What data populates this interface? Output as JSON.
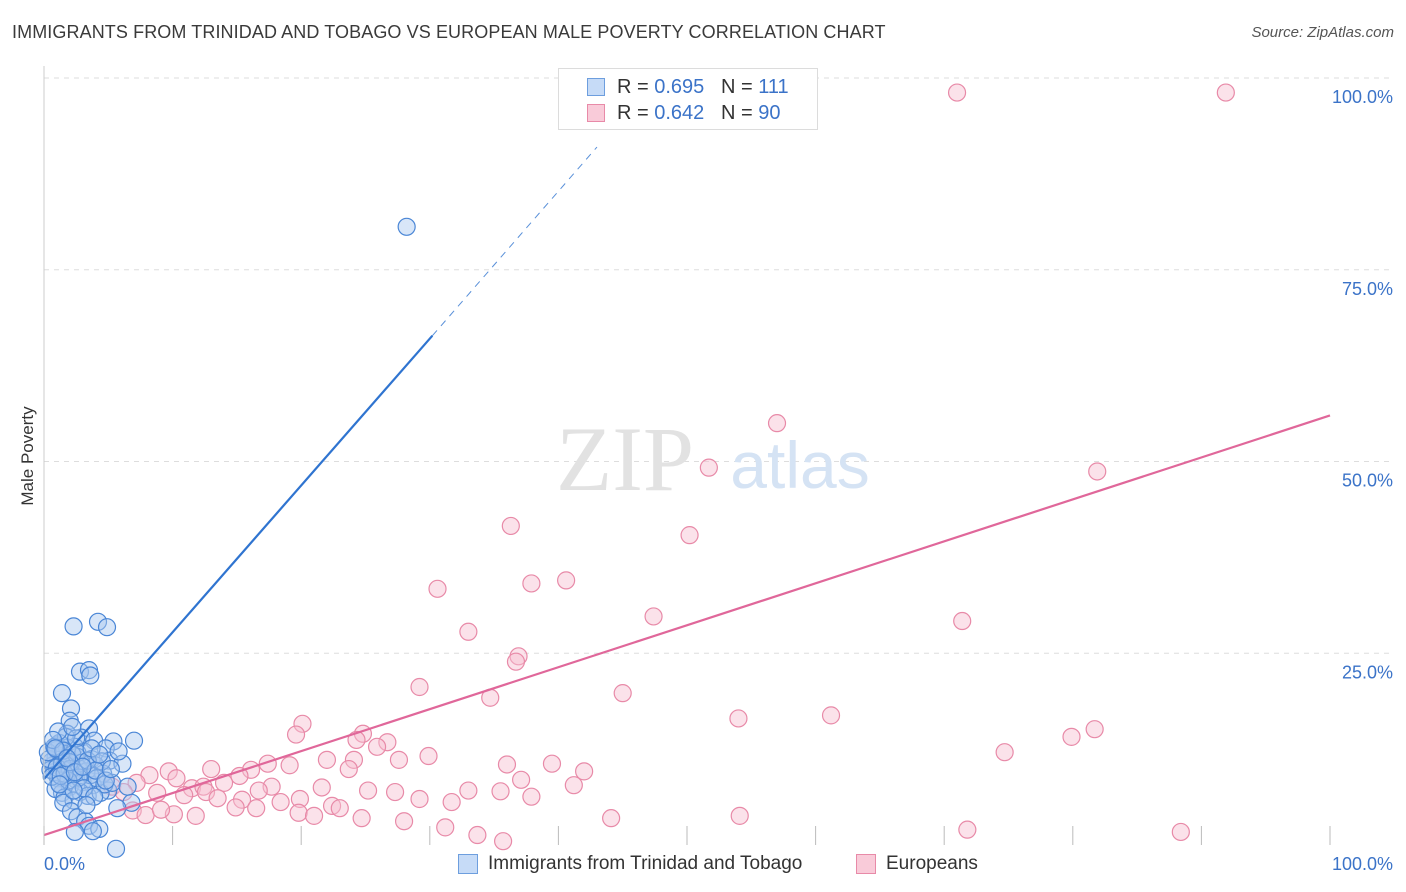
{
  "header": {
    "title": "IMMIGRANTS FROM TRINIDAD AND TOBAGO VS EUROPEAN MALE POVERTY CORRELATION CHART",
    "source": "Source: ZipAtlas.com"
  },
  "watermark": {
    "zip": "ZIP",
    "atlas": "atlas"
  },
  "legend": {
    "series1": {
      "r_label": "R =",
      "r_value": "0.695",
      "n_label": "N =",
      "n_value": "111"
    },
    "series2": {
      "r_label": "R =",
      "r_value": "0.642",
      "n_label": "N =",
      "n_value": "90"
    }
  },
  "bottom_legend": {
    "series1_label": "Immigrants from Trinidad and Tobago",
    "series2_label": "Europeans"
  },
  "colors": {
    "blue_fill": "#a9c8f0",
    "blue_stroke": "#4a86d6",
    "blue_line": "#2f74d0",
    "pink_fill": "#f7bfd0",
    "pink_stroke": "#e88aa8",
    "pink_line": "#e0679a",
    "grid": "#dddddd",
    "tick_text": "#3b73c8"
  },
  "chart_data": {
    "type": "scatter",
    "title": "IMMIGRANTS FROM TRINIDAD AND TOBAGO VS EUROPEAN MALE POVERTY CORRELATION CHART",
    "xlabel": "",
    "ylabel": "Male Poverty",
    "xlim": [
      0,
      100
    ],
    "ylim": [
      0,
      100
    ],
    "x_tick_labels": [
      "0.0%",
      "100.0%"
    ],
    "y_tick_labels": [
      "100.0%",
      "75.0%",
      "50.0%",
      "25.0%"
    ],
    "y_tick_values": [
      100,
      75,
      50,
      25
    ],
    "x_tick_marks": [
      0,
      10,
      20,
      30,
      40,
      50,
      60,
      70,
      80,
      90,
      100
    ],
    "series": [
      {
        "name": "Immigrants from Trinidad and Tobago",
        "r": 0.695,
        "n": 111,
        "trend": {
          "x0": 0,
          "y0": 8.6,
          "x1": 30.2,
          "y1": 66.4,
          "dash_to_x": 43.0,
          "dash_to_y": 91.0
        },
        "points": [
          [
            28.2,
            80.6
          ],
          [
            2.3,
            28.5
          ],
          [
            4.2,
            29.1
          ],
          [
            4.9,
            28.4
          ],
          [
            2.8,
            22.6
          ],
          [
            3.5,
            22.8
          ],
          [
            3.6,
            22.1
          ],
          [
            1.4,
            19.8
          ],
          [
            2.1,
            17.8
          ],
          [
            2.0,
            16.2
          ],
          [
            3.5,
            15.2
          ],
          [
            1.8,
            14.5
          ],
          [
            2.9,
            14.0
          ],
          [
            3.9,
            13.6
          ],
          [
            5.4,
            13.5
          ],
          [
            7.0,
            13.6
          ],
          [
            1.0,
            13.0
          ],
          [
            2.4,
            12.8
          ],
          [
            4.8,
            12.6
          ],
          [
            1.3,
            12.0
          ],
          [
            3.1,
            12.2
          ],
          [
            0.9,
            11.4
          ],
          [
            1.6,
            11.0
          ],
          [
            2.6,
            11.5
          ],
          [
            3.7,
            11.2
          ],
          [
            5.1,
            11.0
          ],
          [
            0.7,
            10.4
          ],
          [
            1.9,
            10.3
          ],
          [
            2.7,
            10.0
          ],
          [
            4.0,
            10.4
          ],
          [
            0.8,
            9.5
          ],
          [
            1.5,
            9.8
          ],
          [
            2.2,
            9.2
          ],
          [
            3.3,
            9.6
          ],
          [
            4.6,
            9.3
          ],
          [
            1.1,
            8.7
          ],
          [
            1.7,
            8.9
          ],
          [
            2.5,
            8.5
          ],
          [
            3.0,
            8.2
          ],
          [
            6.1,
            10.6
          ],
          [
            1.2,
            8.0
          ],
          [
            2.0,
            7.6
          ],
          [
            3.8,
            7.8
          ],
          [
            5.0,
            7.1
          ],
          [
            1.4,
            6.8
          ],
          [
            2.8,
            6.9
          ],
          [
            3.4,
            6.4
          ],
          [
            4.4,
            6.8
          ],
          [
            0.9,
            7.3
          ],
          [
            1.6,
            6.2
          ],
          [
            2.3,
            5.8
          ],
          [
            6.8,
            5.5
          ],
          [
            1.5,
            5.5
          ],
          [
            2.1,
            4.4
          ],
          [
            2.6,
            3.6
          ],
          [
            3.2,
            3.1
          ],
          [
            3.5,
            2.5
          ],
          [
            4.3,
            2.1
          ],
          [
            5.7,
            4.8
          ],
          [
            3.8,
            1.8
          ],
          [
            5.6,
            -0.5
          ],
          [
            2.4,
            1.7
          ],
          [
            1.3,
            11.6
          ],
          [
            0.6,
            10.9
          ],
          [
            0.5,
            9.8
          ],
          [
            0.4,
            11.2
          ],
          [
            1.0,
            12.4
          ],
          [
            1.8,
            12.7
          ],
          [
            2.2,
            11.8
          ],
          [
            2.9,
            10.7
          ],
          [
            3.6,
            9.1
          ],
          [
            4.1,
            8.7
          ],
          [
            4.7,
            7.9
          ],
          [
            5.3,
            8.1
          ],
          [
            1.2,
            13.3
          ],
          [
            1.7,
            14.1
          ],
          [
            2.5,
            13.9
          ],
          [
            0.3,
            12.1
          ],
          [
            0.8,
            12.8
          ],
          [
            1.4,
            10.6
          ],
          [
            2.0,
            9.9
          ],
          [
            2.7,
            8.8
          ],
          [
            3.1,
            7.4
          ],
          [
            3.9,
            6.3
          ],
          [
            1.0,
            10.1
          ],
          [
            0.6,
            8.9
          ],
          [
            1.9,
            8.4
          ],
          [
            2.3,
            7.1
          ],
          [
            3.3,
            5.2
          ],
          [
            1.6,
            9.3
          ],
          [
            4.5,
            10.9
          ],
          [
            5.8,
            12.2
          ],
          [
            1.1,
            14.8
          ],
          [
            2.2,
            15.4
          ],
          [
            0.7,
            13.7
          ],
          [
            1.5,
            12.3
          ],
          [
            2.6,
            12.0
          ],
          [
            3.4,
            11.0
          ],
          [
            4.0,
            9.7
          ],
          [
            4.8,
            8.4
          ],
          [
            1.3,
            9.0
          ],
          [
            2.0,
            10.8
          ],
          [
            0.9,
            12.6
          ],
          [
            1.8,
            11.3
          ],
          [
            2.4,
            9.5
          ],
          [
            3.0,
            10.2
          ],
          [
            3.7,
            12.6
          ],
          [
            4.3,
            11.8
          ],
          [
            6.5,
            7.6
          ],
          [
            5.2,
            9.9
          ],
          [
            1.2,
            7.9
          ]
        ]
      },
      {
        "name": "Europeans",
        "r": 0.642,
        "n": 90,
        "trend": {
          "x0": 0,
          "y0": 1.3,
          "x1": 100,
          "y1": 56.0
        },
        "points": [
          [
            71.0,
            98.1
          ],
          [
            91.9,
            98.1
          ],
          [
            57.0,
            55.0
          ],
          [
            51.7,
            49.2
          ],
          [
            81.9,
            48.7
          ],
          [
            36.3,
            41.6
          ],
          [
            50.2,
            40.4
          ],
          [
            37.9,
            34.1
          ],
          [
            40.6,
            34.5
          ],
          [
            30.6,
            33.4
          ],
          [
            47.4,
            29.8
          ],
          [
            71.4,
            29.2
          ],
          [
            33.0,
            27.8
          ],
          [
            36.9,
            24.6
          ],
          [
            36.7,
            23.9
          ],
          [
            29.2,
            20.6
          ],
          [
            34.7,
            19.2
          ],
          [
            45.0,
            19.8
          ],
          [
            54.0,
            16.5
          ],
          [
            61.2,
            16.9
          ],
          [
            20.1,
            15.8
          ],
          [
            19.6,
            14.4
          ],
          [
            24.8,
            14.5
          ],
          [
            24.3,
            13.7
          ],
          [
            26.7,
            13.4
          ],
          [
            25.9,
            12.8
          ],
          [
            22.0,
            11.1
          ],
          [
            24.1,
            11.1
          ],
          [
            27.6,
            11.1
          ],
          [
            29.9,
            11.6
          ],
          [
            36.0,
            10.5
          ],
          [
            39.5,
            10.6
          ],
          [
            42.0,
            9.6
          ],
          [
            41.2,
            7.8
          ],
          [
            37.1,
            8.5
          ],
          [
            17.4,
            10.6
          ],
          [
            19.1,
            10.4
          ],
          [
            16.1,
            9.8
          ],
          [
            23.7,
            9.9
          ],
          [
            13.0,
            9.9
          ],
          [
            15.2,
            9.0
          ],
          [
            9.7,
            9.6
          ],
          [
            8.2,
            9.1
          ],
          [
            10.3,
            8.7
          ],
          [
            11.5,
            7.4
          ],
          [
            12.4,
            7.6
          ],
          [
            14.0,
            8.1
          ],
          [
            17.7,
            7.6
          ],
          [
            21.6,
            7.5
          ],
          [
            25.2,
            7.1
          ],
          [
            27.3,
            6.9
          ],
          [
            7.2,
            8.1
          ],
          [
            5.3,
            7.6
          ],
          [
            6.2,
            6.9
          ],
          [
            8.8,
            6.8
          ],
          [
            10.9,
            6.5
          ],
          [
            12.6,
            6.9
          ],
          [
            15.4,
            5.9
          ],
          [
            16.7,
            7.1
          ],
          [
            18.4,
            5.6
          ],
          [
            19.9,
            6.0
          ],
          [
            22.4,
            5.1
          ],
          [
            29.2,
            6.0
          ],
          [
            31.7,
            5.6
          ],
          [
            33.0,
            7.1
          ],
          [
            35.5,
            7.0
          ],
          [
            37.9,
            6.3
          ],
          [
            13.5,
            6.1
          ],
          [
            10.1,
            4.0
          ],
          [
            11.8,
            3.8
          ],
          [
            6.9,
            4.5
          ],
          [
            7.9,
            3.9
          ],
          [
            9.1,
            4.6
          ],
          [
            14.9,
            4.9
          ],
          [
            16.5,
            4.8
          ],
          [
            19.8,
            4.2
          ],
          [
            23.0,
            4.8
          ],
          [
            21.0,
            3.8
          ],
          [
            24.7,
            3.5
          ],
          [
            28.0,
            3.1
          ],
          [
            31.2,
            2.3
          ],
          [
            33.7,
            1.3
          ],
          [
            35.7,
            0.5
          ],
          [
            44.1,
            3.5
          ],
          [
            54.1,
            3.8
          ],
          [
            71.8,
            2.0
          ],
          [
            74.7,
            12.1
          ],
          [
            79.9,
            14.1
          ],
          [
            81.7,
            15.1
          ],
          [
            88.4,
            1.7
          ]
        ]
      }
    ]
  }
}
